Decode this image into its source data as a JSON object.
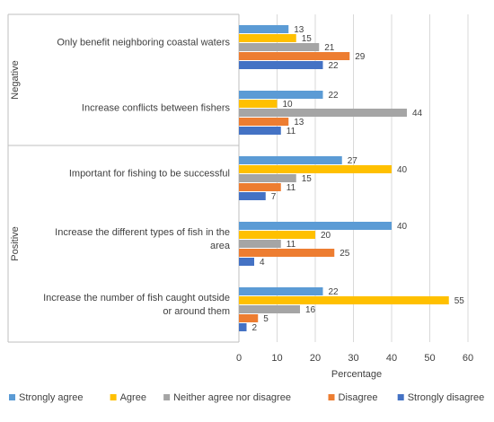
{
  "chart_data": {
    "type": "bar",
    "orientation": "horizontal",
    "xlabel": "Percentage",
    "xlim": [
      0,
      60
    ],
    "xticks": [
      0,
      10,
      20,
      30,
      40,
      50,
      60
    ],
    "grid": true,
    "legend_position": "bottom",
    "groups": [
      {
        "label": "Negative",
        "categories": [
          "Only benefit neighboring coastal waters",
          "Increase conflicts between fishers"
        ]
      },
      {
        "label": "Positive",
        "categories": [
          "Important for fishing to be successful",
          "Increase the different types of fish in the area",
          "Increase the number of fish caught outside or around them"
        ]
      }
    ],
    "series": [
      {
        "name": "Strongly agree",
        "color": "#5B9BD5",
        "values": [
          13,
          22,
          27,
          40,
          22
        ]
      },
      {
        "name": "Agree",
        "color": "#FFC000",
        "values": [
          15,
          10,
          40,
          20,
          55
        ]
      },
      {
        "name": "Neither agree nor disagree",
        "color": "#A5A5A5",
        "values": [
          21,
          44,
          15,
          11,
          16
        ]
      },
      {
        "name": "Disagree",
        "color": "#ED7D31",
        "values": [
          29,
          13,
          11,
          25,
          5
        ]
      },
      {
        "name": "Strongly disagree",
        "color": "#4472C4",
        "values": [
          22,
          11,
          7,
          4,
          2
        ]
      }
    ]
  }
}
